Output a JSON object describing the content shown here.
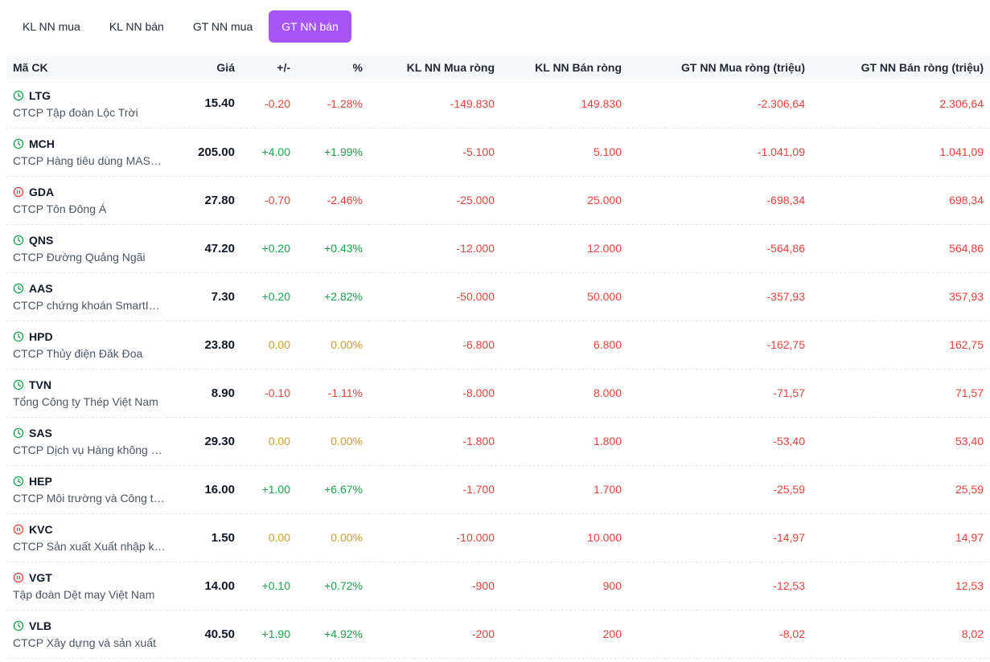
{
  "tabs": [
    {
      "label": "KL NN mua",
      "active": false
    },
    {
      "label": "KL NN bán",
      "active": false
    },
    {
      "label": "GT NN mua",
      "active": false
    },
    {
      "label": "GT NN bán",
      "active": true
    }
  ],
  "headers": {
    "symbol": "Mã CK",
    "price": "Giá",
    "change": "+/-",
    "pct": "%",
    "kl_buy": "KL NN Mua ròng",
    "kl_sell": "KL NN Bán ròng",
    "gt_buy": "GT NN Mua ròng (triệu)",
    "gt_sell": "GT NN Bán ròng (triệu)"
  },
  "colors": {
    "up": "#16a34a",
    "down": "#e0463c",
    "ref": "#c9a227",
    "accent": "#a855f7"
  },
  "rows": [
    {
      "icon": "clock-icon",
      "sym": "LTG",
      "name": "CTCP Tập đoàn Lộc Trời",
      "price": "15.40",
      "change": "-0.20",
      "pct": "-1.28%",
      "dir": "down",
      "kl_buy": "-149.830",
      "kl_sell": "149.830",
      "gt_buy": "-2.306,64",
      "gt_sell": "2.306,64"
    },
    {
      "icon": "clock-icon",
      "sym": "MCH",
      "name": "CTCP Hàng tiêu dùng MASAN",
      "price": "205.00",
      "change": "+4.00",
      "pct": "+1.99%",
      "dir": "up",
      "kl_buy": "-5.100",
      "kl_sell": "5.100",
      "gt_buy": "-1.041,09",
      "gt_sell": "1.041,09"
    },
    {
      "icon": "pause-icon",
      "sym": "GDA",
      "name": "CTCP Tôn Đông Á",
      "price": "27.80",
      "change": "-0.70",
      "pct": "-2.46%",
      "dir": "down",
      "kl_buy": "-25.000",
      "kl_sell": "25.000",
      "gt_buy": "-698,34",
      "gt_sell": "698,34"
    },
    {
      "icon": "clock-icon",
      "sym": "QNS",
      "name": "CTCP Đường Quảng Ngãi",
      "price": "47.20",
      "change": "+0.20",
      "pct": "+0.43%",
      "dir": "up",
      "kl_buy": "-12.000",
      "kl_sell": "12.000",
      "gt_buy": "-564,86",
      "gt_sell": "564,86"
    },
    {
      "icon": "clock-icon",
      "sym": "AAS",
      "name": "CTCP chứng khoán SmartInvest",
      "price": "7.30",
      "change": "+0.20",
      "pct": "+2.82%",
      "dir": "up",
      "kl_buy": "-50.000",
      "kl_sell": "50.000",
      "gt_buy": "-357,93",
      "gt_sell": "357,93"
    },
    {
      "icon": "clock-icon",
      "sym": "HPD",
      "name": "CTCP Thủy điện Đăk Đoa",
      "price": "23.80",
      "change": "0.00",
      "pct": "0.00%",
      "dir": "ref",
      "kl_buy": "-6.800",
      "kl_sell": "6.800",
      "gt_buy": "-162,75",
      "gt_sell": "162,75"
    },
    {
      "icon": "clock-icon",
      "sym": "TVN",
      "name": "Tổng Công ty Thép Việt Nam",
      "price": "8.90",
      "change": "-0.10",
      "pct": "-1.11%",
      "dir": "down",
      "kl_buy": "-8.000",
      "kl_sell": "8.000",
      "gt_buy": "-71,57",
      "gt_sell": "71,57"
    },
    {
      "icon": "clock-icon",
      "sym": "SAS",
      "name": "CTCP Dịch vụ Hàng không Sân bay",
      "price": "29.30",
      "change": "0.00",
      "pct": "0.00%",
      "dir": "ref",
      "kl_buy": "-1.800",
      "kl_sell": "1.800",
      "gt_buy": "-53,40",
      "gt_sell": "53,40"
    },
    {
      "icon": "clock-icon",
      "sym": "HEP",
      "name": "CTCP Môi trường và Công trình",
      "price": "16.00",
      "change": "+1.00",
      "pct": "+6.67%",
      "dir": "up",
      "kl_buy": "-1.700",
      "kl_sell": "1.700",
      "gt_buy": "-25,59",
      "gt_sell": "25,59"
    },
    {
      "icon": "pause-icon",
      "sym": "KVC",
      "name": "CTCP Sản xuất Xuất nhập khẩu",
      "price": "1.50",
      "change": "0.00",
      "pct": "0.00%",
      "dir": "ref",
      "kl_buy": "-10.000",
      "kl_sell": "10.000",
      "gt_buy": "-14,97",
      "gt_sell": "14,97"
    },
    {
      "icon": "pause-icon",
      "sym": "VGT",
      "name": "Tập đoàn Dệt may Việt Nam",
      "price": "14.00",
      "change": "+0.10",
      "pct": "+0.72%",
      "dir": "up",
      "kl_buy": "-900",
      "kl_sell": "900",
      "gt_buy": "-12,53",
      "gt_sell": "12,53"
    },
    {
      "icon": "clock-icon",
      "sym": "VLB",
      "name": "CTCP Xây dựng và sản xuất",
      "price": "40.50",
      "change": "+1.90",
      "pct": "+4.92%",
      "dir": "up",
      "kl_buy": "-200",
      "kl_sell": "200",
      "gt_buy": "-8,02",
      "gt_sell": "8,02"
    }
  ]
}
